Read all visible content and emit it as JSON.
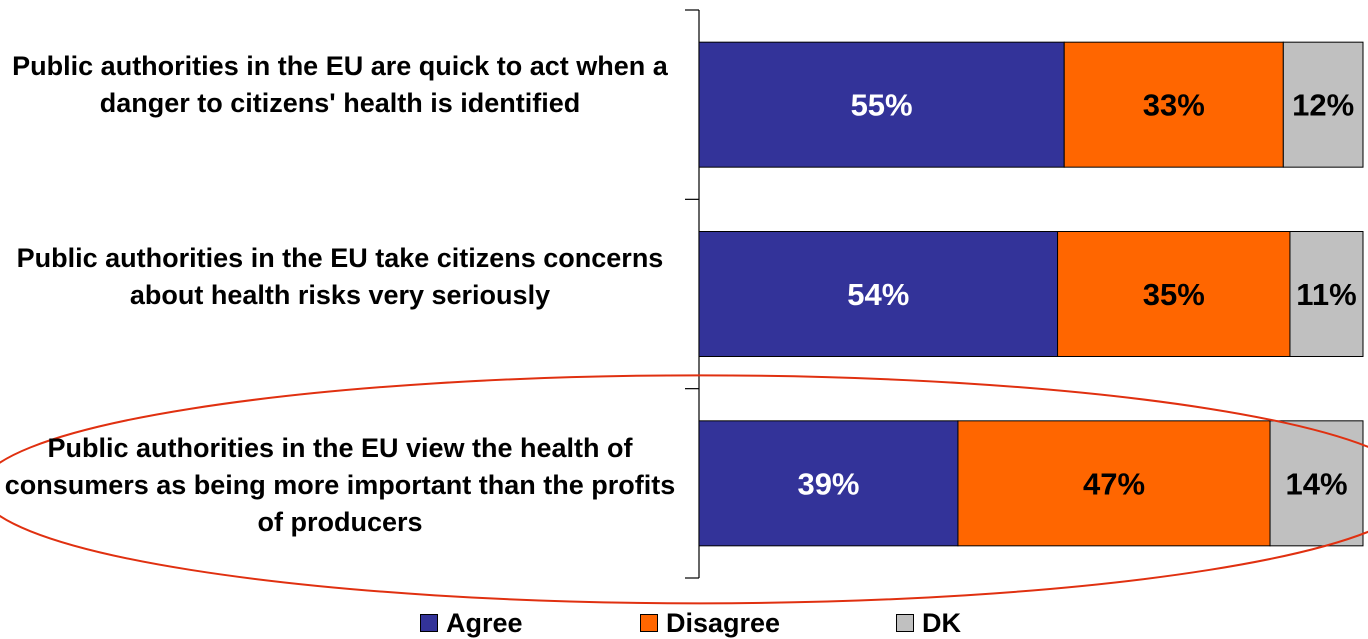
{
  "chart_data": {
    "type": "bar",
    "orientation": "horizontal",
    "stacked": true,
    "categories": [
      "Public authorities in the EU are quick to act when a danger to citizens' health is identified",
      "Public authorities in the EU take citizens concerns about health risks very seriously",
      "Public authorities in the EU view the health of consumers as being more important than the profits of producers"
    ],
    "series": [
      {
        "name": "Agree",
        "values": [
          55,
          54,
          39
        ],
        "labels": [
          "55%",
          "54%",
          "39%"
        ],
        "color": "#333399",
        "label_color": "#ffffff"
      },
      {
        "name": "Disagree",
        "values": [
          33,
          35,
          47
        ],
        "labels": [
          "33%",
          "35%",
          "47%"
        ],
        "color": "#ff6600",
        "label_color": "#000000"
      },
      {
        "name": "DK",
        "values": [
          12,
          11,
          14
        ],
        "labels": [
          "12%",
          "11%",
          "14%"
        ],
        "color": "#c0c0c0",
        "label_color": "#000000"
      }
    ],
    "xlim": [
      0,
      100
    ],
    "legend_position": "bottom",
    "highlight": {
      "category_index": 2,
      "shape": "ellipse",
      "color": "#e03010"
    }
  },
  "labels": {
    "cat0": "Public authorities in the EU are quick to act when a danger to citizens' health is identified",
    "cat1": "Public authorities in the EU take citizens concerns about health risks very seriously",
    "cat2": "Public authorities in the EU view the health of consumers as being more important than the profits of producers"
  },
  "legend": {
    "agree": "Agree",
    "disagree": "Disagree",
    "dk": "DK"
  }
}
